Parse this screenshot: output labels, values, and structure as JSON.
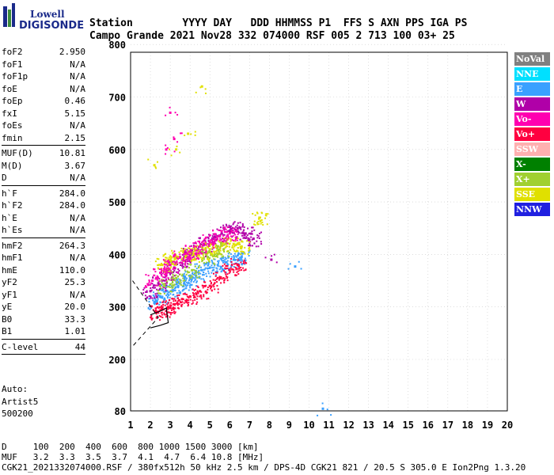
{
  "logo": {
    "line1": "Lowell",
    "line2": "DIGISONDE"
  },
  "header": {
    "row1": "Station        YYYY DAY   DDD HHMMSS P1  FFS S AXN PPS IGA PS",
    "row2": "Campo Grande 2021 Nov28 332 074000 RSF 005 2 713 100 03+ 25"
  },
  "params": [
    {
      "name": "foF2",
      "value": "2.950"
    },
    {
      "name": "foF1",
      "value": "N/A"
    },
    {
      "name": "foF1p",
      "value": "N/A"
    },
    {
      "name": "foE",
      "value": "N/A"
    },
    {
      "name": "foEp",
      "value": "0.46"
    },
    {
      "name": "fxI",
      "value": "5.15"
    },
    {
      "name": "foEs",
      "value": "N/A"
    },
    {
      "name": "fmin",
      "value": "2.15"
    },
    {
      "sep": true
    },
    {
      "name": "MUF(D)",
      "value": "10.81"
    },
    {
      "name": "M(D)",
      "value": "3.67"
    },
    {
      "name": "D",
      "value": "N/A"
    },
    {
      "sep": true
    },
    {
      "name": "h`F",
      "value": "284.0"
    },
    {
      "name": "h`F2",
      "value": "284.0"
    },
    {
      "name": "h`E",
      "value": "N/A"
    },
    {
      "name": "h`Es",
      "value": "N/A"
    },
    {
      "sep": true
    },
    {
      "name": "hmF2",
      "value": "264.3"
    },
    {
      "name": "hmF1",
      "value": "N/A"
    },
    {
      "name": "hmE",
      "value": "110.0"
    },
    {
      "name": "yF2",
      "value": "25.3"
    },
    {
      "name": "yF1",
      "value": "N/A"
    },
    {
      "name": "yE",
      "value": "20.0"
    },
    {
      "name": "B0",
      "value": "33.3"
    },
    {
      "name": "B1",
      "value": "1.01"
    },
    {
      "sep": true
    },
    {
      "name": "C-level",
      "value": "44"
    },
    {
      "sep": true
    }
  ],
  "auto": {
    "line1": "Auto:",
    "line2": "Artist5",
    "line3": "500200"
  },
  "legend": [
    {
      "label": "NoVal",
      "color": "#808080"
    },
    {
      "label": "NNE",
      "color": "#00e0ff"
    },
    {
      "label": "E",
      "color": "#3aa0ff"
    },
    {
      "label": "W",
      "color": "#b000a8"
    },
    {
      "label": "Vo-",
      "color": "#ff00b0"
    },
    {
      "label": "Vo+",
      "color": "#ff0040"
    },
    {
      "label": "SSW",
      "color": "#ffb0b0"
    },
    {
      "label": "X-",
      "color": "#008000"
    },
    {
      "label": "X+",
      "color": "#a0d030"
    },
    {
      "label": "SSE",
      "color": "#e0e000"
    },
    {
      "label": "NNW",
      "color": "#2020e0"
    }
  ],
  "bottom": {
    "row1": "D     100  200  400  600  800 1000 1500 3000 [km]",
    "row2": "MUF   3.2  3.3  3.5  3.7  4.1  4.7  6.4 10.8 [MHz]",
    "row3": "CGK21_2021332074000.RSF / 380fx512h 50 kHz 2.5 km / DPS-4D CGK21 821 / 20.5 S 305.0 E Ion2Png 1.3.20"
  },
  "chart_data": {
    "type": "scatter",
    "xlim": [
      1,
      20
    ],
    "ylim": [
      80,
      900
    ],
    "x_ticks": [
      "1",
      "2",
      "3",
      "4",
      "5",
      "6",
      "7",
      "8",
      "9",
      "10",
      "11",
      "12",
      "13",
      "14",
      "15",
      "16",
      "17",
      "18",
      "19",
      "20"
    ],
    "y_ticks": [
      "80",
      "200",
      "300",
      "400",
      "500",
      "600",
      "700",
      "800",
      "900"
    ],
    "grid": true,
    "series": [
      {
        "name": "E",
        "color": "#3aa0ff",
        "points": [
          [
            2.2,
            310
          ],
          [
            2.5,
            320
          ],
          [
            2.8,
            330
          ],
          [
            3.1,
            330
          ],
          [
            3.4,
            340
          ],
          [
            3.7,
            345
          ],
          [
            4.0,
            355
          ],
          [
            4.3,
            360
          ],
          [
            4.6,
            370
          ],
          [
            5.0,
            375
          ],
          [
            5.4,
            380
          ],
          [
            5.8,
            385
          ],
          [
            6.2,
            390
          ],
          [
            6.6,
            395
          ],
          [
            9.3,
            377
          ],
          [
            10.7,
            85
          ]
        ]
      },
      {
        "name": "W",
        "color": "#b000a8",
        "points": [
          [
            2.0,
            330
          ],
          [
            2.4,
            345
          ],
          [
            2.8,
            360
          ],
          [
            3.2,
            375
          ],
          [
            3.6,
            390
          ],
          [
            4.0,
            400
          ],
          [
            4.4,
            410
          ],
          [
            4.8,
            420
          ],
          [
            5.2,
            430
          ],
          [
            5.6,
            440
          ],
          [
            6.0,
            445
          ],
          [
            6.4,
            450
          ],
          [
            6.8,
            440
          ],
          [
            7.2,
            430
          ],
          [
            8.1,
            390
          ]
        ]
      },
      {
        "name": "SSE",
        "color": "#e0e000",
        "points": [
          [
            2.6,
            380
          ],
          [
            3.0,
            390
          ],
          [
            3.4,
            395
          ],
          [
            3.8,
            400
          ],
          [
            4.2,
            400
          ],
          [
            4.6,
            405
          ],
          [
            5.0,
            410
          ],
          [
            5.4,
            415
          ],
          [
            5.8,
            420
          ],
          [
            6.2,
            420
          ],
          [
            6.6,
            415
          ],
          [
            7.5,
            470
          ],
          [
            2.2,
            570
          ],
          [
            3.3,
            600
          ],
          [
            3.9,
            630
          ],
          [
            4.6,
            720
          ]
        ]
      },
      {
        "name": "Vo+",
        "color": "#ff0040",
        "points": [
          [
            2.3,
            290
          ],
          [
            2.6,
            295
          ],
          [
            2.9,
            300
          ],
          [
            3.2,
            305
          ],
          [
            3.6,
            315
          ],
          [
            4.0,
            320
          ],
          [
            4.5,
            330
          ],
          [
            5.0,
            340
          ],
          [
            5.5,
            355
          ],
          [
            6.0,
            370
          ],
          [
            6.4,
            380
          ]
        ]
      },
      {
        "name": "Vo-",
        "color": "#ff00b0",
        "points": [
          [
            2.1,
            350
          ],
          [
            2.5,
            365
          ],
          [
            3.0,
            380
          ],
          [
            3.5,
            395
          ],
          [
            4.0,
            405
          ],
          [
            4.5,
            415
          ],
          [
            5.0,
            425
          ],
          [
            5.5,
            435
          ],
          [
            6.0,
            440
          ],
          [
            2.8,
            600
          ],
          [
            3.2,
            620
          ],
          [
            3.0,
            670
          ]
        ]
      },
      {
        "name": "X+",
        "color": "#a0d030",
        "points": [
          [
            2.7,
            340
          ],
          [
            3.3,
            355
          ],
          [
            4.1,
            370
          ],
          [
            4.9,
            395
          ],
          [
            5.7,
            410
          ]
        ]
      }
    ],
    "profile_solid": [
      [
        2.0,
        285
      ],
      [
        2.5,
        292
      ],
      [
        2.8,
        298
      ],
      [
        2.9,
        270
      ],
      [
        2.5,
        265
      ],
      [
        2.0,
        260
      ]
    ],
    "profile_dashed": [
      [
        1.1,
        350
      ],
      [
        2.4,
        280
      ],
      [
        1.1,
        225
      ]
    ]
  }
}
